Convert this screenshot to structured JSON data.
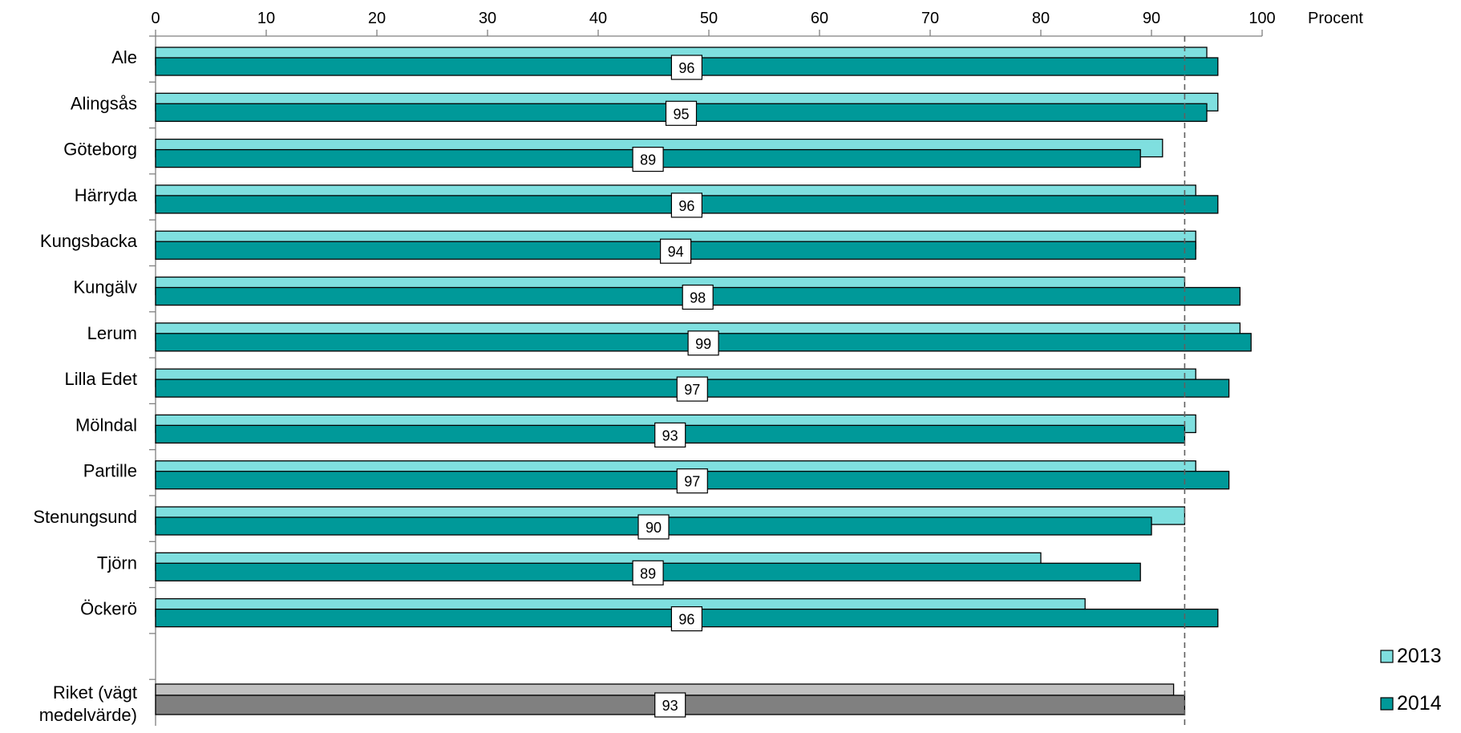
{
  "chart_data": {
    "type": "bar",
    "orientation": "horizontal",
    "xlabel": "Procent",
    "xlim": [
      0,
      100
    ],
    "x_ticks": [
      "0",
      "10",
      "20",
      "30",
      "40",
      "50",
      "60",
      "70",
      "80",
      "90",
      "100"
    ],
    "categories": [
      "Ale",
      "Alingsås",
      "Göteborg",
      "Härryda",
      "Kungsbacka",
      "Kungälv",
      "Lerum",
      "Lilla Edet",
      "Mölndal",
      "Partille",
      "Stenungsund",
      "Tjörn",
      "Öckerö"
    ],
    "series": [
      {
        "name": "2013",
        "color": "#7fdfdf",
        "values": [
          95,
          96,
          91,
          94,
          94,
          93,
          98,
          94,
          94,
          94,
          93,
          80,
          84
        ]
      },
      {
        "name": "2014",
        "color": "#009999",
        "values": [
          96,
          95,
          89,
          96,
          94,
          98,
          99,
          97,
          93,
          97,
          90,
          89,
          96
        ]
      }
    ],
    "reference": {
      "category": [
        "Riket (vägt",
        "medelvärde)"
      ],
      "values_2013": 92,
      "values_2014": 93,
      "color_2013": "#c0c0c0",
      "color_2014": "#808080"
    },
    "reference_line": 93,
    "data_labels": "2014 values",
    "legend": [
      "2013",
      "2014"
    ],
    "legend_position": "bottom-right",
    "grid": false
  }
}
